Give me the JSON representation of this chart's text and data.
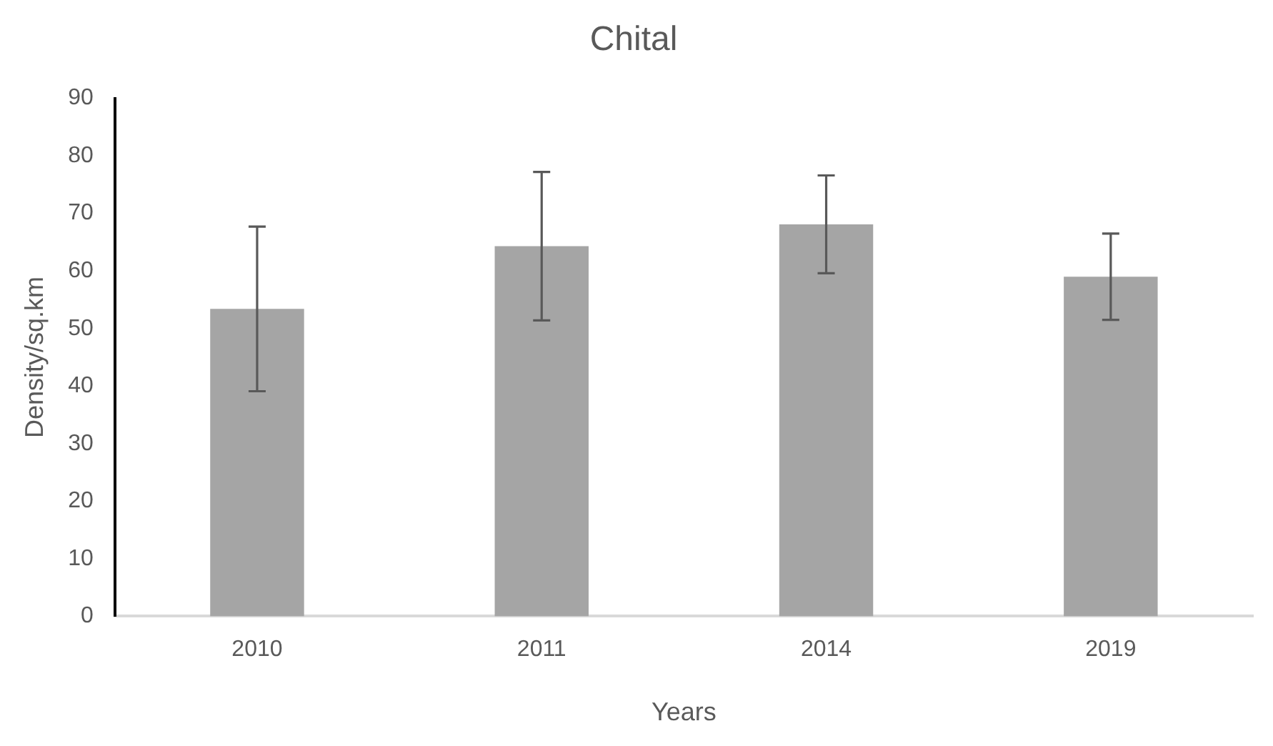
{
  "chart_data": {
    "type": "bar",
    "title": "Chital",
    "xlabel": "Years",
    "ylabel": "Density/sq.km",
    "categories": [
      "2010",
      "2011",
      "2014",
      "2019"
    ],
    "values": [
      53.4,
      64.3,
      68.1,
      59.0
    ],
    "errors": [
      14.3,
      12.9,
      8.5,
      7.5
    ],
    "color": "#a5a5a5",
    "ylim": [
      0,
      90
    ],
    "yticks": [
      0,
      10,
      20,
      30,
      40,
      50,
      60,
      70,
      80,
      90
    ],
    "grid": false,
    "legend": false
  }
}
